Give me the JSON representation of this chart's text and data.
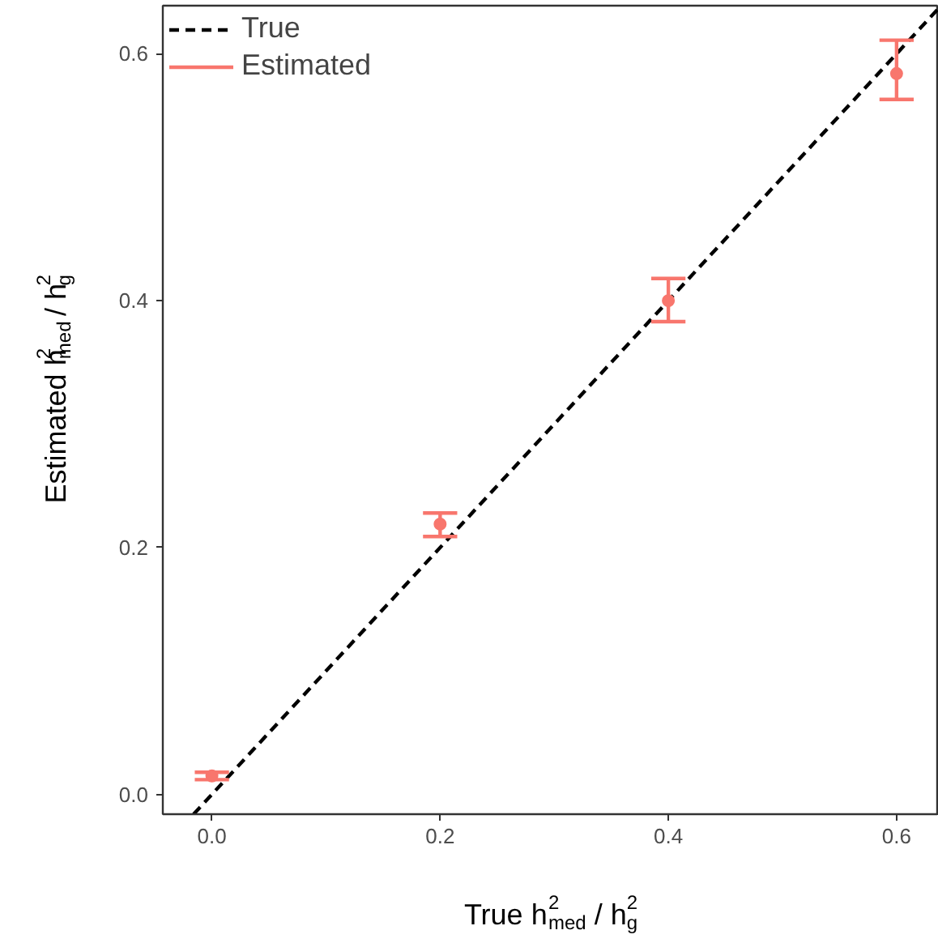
{
  "chart_data": {
    "type": "scatter",
    "xlabel": "True h$^{2}$$_{med}$ / h$^{2}$$_{g}$",
    "ylabel": "Estimated h$^{2}$$_{med}$ / h$^{2}$$_{g}$",
    "xlim": [
      -0.043,
      0.637
    ],
    "ylim": [
      -0.016,
      0.639
    ],
    "xticks": [
      {
        "value": 0,
        "label": "0.0"
      },
      0.2,
      0.4,
      0.6
    ],
    "yticks": [
      {
        "value": 0,
        "label": "0.0"
      },
      0.2,
      0.4,
      0.6
    ],
    "grid": false,
    "legend": "top left",
    "series": [
      {
        "name": "True",
        "type": "line",
        "color": "#000000",
        "line_style": "dashed",
        "x": [
          -0.016,
          0.637
        ],
        "values": [
          -0.016,
          0.637
        ]
      },
      {
        "name": "Estimated",
        "color": "#f8766d",
        "marker": "circle",
        "x": [
          0,
          0.2,
          0.4,
          0.6
        ],
        "values": [
          0.015,
          0.219,
          0.4,
          0.584
        ],
        "errors": [
          [
            0.012,
            0.018
          ],
          [
            0.209,
            0.228
          ],
          [
            0.383,
            0.418
          ],
          [
            0.563,
            0.611
          ]
        ]
      }
    ]
  }
}
